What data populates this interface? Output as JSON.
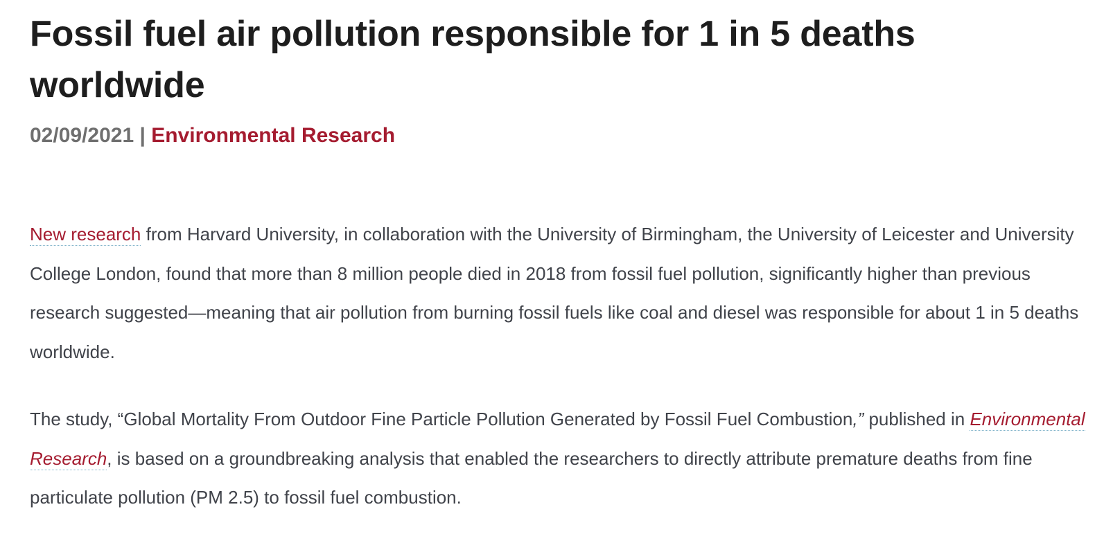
{
  "article": {
    "title": "Fossil fuel air pollution responsible for 1 in 5 deaths worldwide",
    "date": "02/09/2021",
    "separator": "|",
    "category": "Environmental Research",
    "paragraph1": {
      "link_text": "New research",
      "text": " from Harvard University, in collaboration with the University of Birmingham, the University of Leicester and University College London, found that more than 8 million people died in 2018 from fossil fuel pollution, significantly higher than previous research suggested—meaning that air pollution from burning fossil fuels like coal and diesel was responsible for about 1 in 5 deaths worldwide."
    },
    "paragraph2": {
      "text_before": "The study, “Global Mortality From Outdoor Fine Particle Pollution Generated by Fossil Fuel Combustion",
      "italic_quote": ",”",
      "text_mid": " published in ",
      "link_text": "Environmental Research",
      "text_after": ", is based on a groundbreaking analysis that enabled the researchers to directly attribute premature deaths from fine particulate pollution (PM 2.5) to fossil fuel combustion."
    }
  },
  "colors": {
    "heading": "#1e1e1e",
    "meta_gray": "#6f6f6f",
    "accent_crimson": "#a51c30",
    "body_text": "#40434a",
    "link_underline": "#7fb2c9"
  }
}
